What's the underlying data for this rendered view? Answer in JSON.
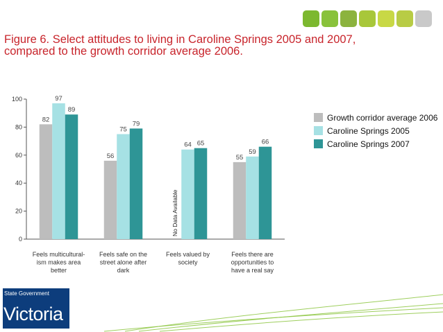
{
  "header": {
    "tile_colors": [
      "#7cb82f",
      "#89c23b",
      "#8cb33e",
      "#a8c73a",
      "#c8d845",
      "#b8cc45",
      "#c9c9c9"
    ]
  },
  "title_line1": "Figure 6. Select attitudes to living in Caroline Springs 2005 and 2007,",
  "title_line2": "compared to the growth corridor average 2006.",
  "chart_data": {
    "type": "bar",
    "categories": [
      [
        "Feels multicultural-",
        "ism makes area",
        "better"
      ],
      [
        "Feels safe on the",
        "street alone after",
        "dark"
      ],
      [
        "Feels valued by",
        "society"
      ],
      [
        "Feels there are",
        "opportunities to",
        "have a real say"
      ]
    ],
    "series": [
      {
        "name": "Growth corridor average 2006",
        "color": "#bdbdbd",
        "values": [
          82,
          56,
          null,
          55
        ]
      },
      {
        "name": "Caroline Springs 2005",
        "color": "#a6e1e4",
        "values": [
          97,
          75,
          64,
          59
        ]
      },
      {
        "name": "Caroline Springs 2007",
        "color": "#2e9596",
        "values": [
          89,
          79,
          65,
          66
        ]
      }
    ],
    "ylim": [
      0,
      100
    ],
    "yticks": [
      0,
      20,
      40,
      60,
      80,
      100
    ],
    "missing_label": "No Data Available",
    "legend_position": "right"
  },
  "logo": {
    "line1": "State Government",
    "line2": "Victoria",
    "color": "#0d3d7c"
  },
  "decoration_color": "#8cc63f"
}
